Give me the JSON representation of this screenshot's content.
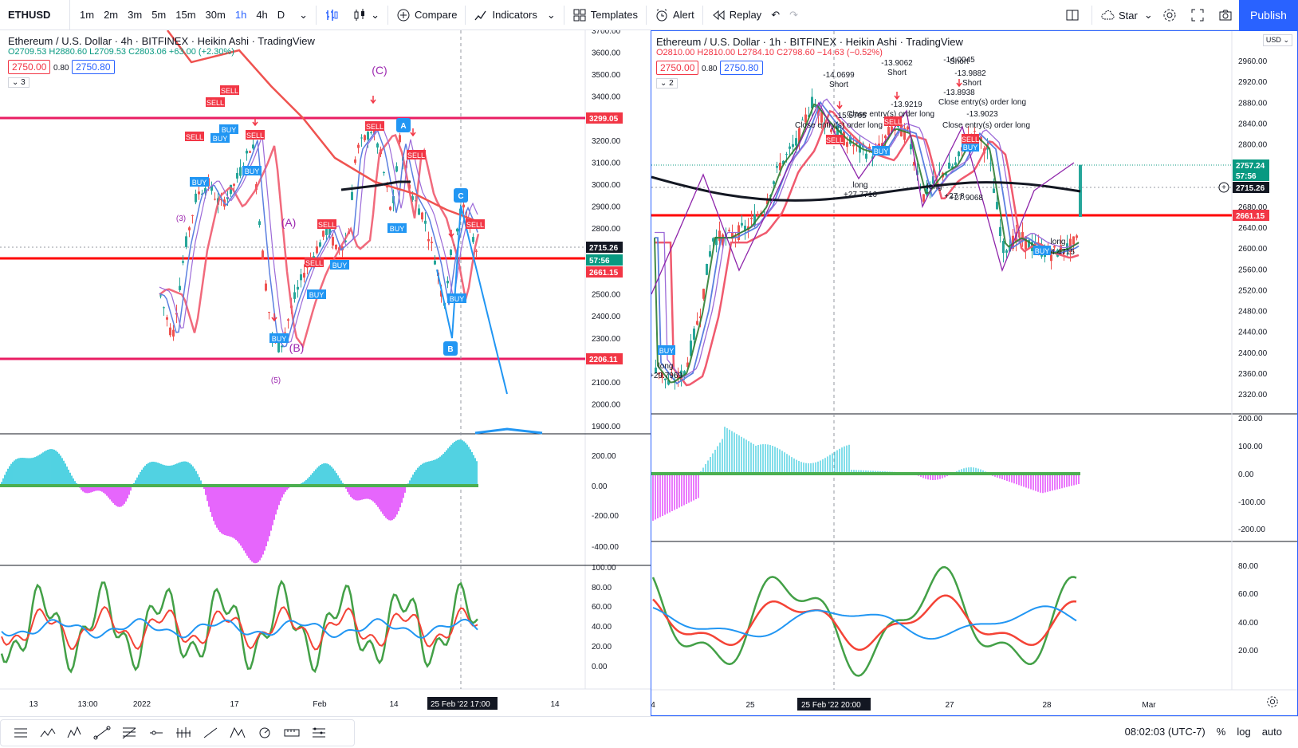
{
  "toolbar": {
    "symbol": "ETHUSD",
    "intervals": [
      "1m",
      "2m",
      "3m",
      "5m",
      "15m",
      "30m",
      "1h",
      "4h",
      "D"
    ],
    "active_interval": "1h",
    "compare": "Compare",
    "indicators": "Indicators",
    "templates": "Templates",
    "alert": "Alert",
    "replay": "Replay",
    "star": "Star",
    "publish": "Publish"
  },
  "left_chart": {
    "title": "Ethereum / U.S. Dollar · 4h · BITFINEX · Heikin Ashi · TradingView",
    "ohlc": {
      "o": "O2709.53",
      "h": "H2880.60",
      "l": "L2709.53",
      "c": "C2803.06",
      "chg": "+63.00 (+2.30%)"
    },
    "bid": "2750.00",
    "spread": "0.80",
    "ask": "2750.80",
    "indicator_count": "3",
    "price_axis": [
      "3700.00",
      "3600.00",
      "3500.00",
      "3400.00",
      "3300.00",
      "3200.00",
      "3100.00",
      "3000.00",
      "2900.00",
      "2800.00",
      "2500.00",
      "2400.00",
      "2300.00",
      "2100.00",
      "2000.00",
      "1900.00"
    ],
    "price_labels": [
      {
        "text": "3299.05",
        "color": "#f23645"
      },
      {
        "text": "2715.26",
        "color": "#131722"
      },
      {
        "text": "57:56",
        "color": "#089981"
      },
      {
        "text": "2661.15",
        "color": "#f23645"
      },
      {
        "text": "2206.11",
        "color": "#f23645"
      }
    ],
    "macd_axis": [
      "200.00",
      "0.00",
      "-200.00",
      "-400.00"
    ],
    "rsi_axis": [
      "100.00",
      "80.00",
      "60.00",
      "40.00",
      "20.00",
      "0.00"
    ],
    "time_axis": [
      "13",
      "13:00",
      "2022",
      "17",
      "Feb",
      "14",
      "14"
    ],
    "time_cursor": "25 Feb '22",
    "time_cursor2": "17:00",
    "waves": [
      "(C)",
      "(A)",
      "(B)",
      "(3)",
      "(5)"
    ],
    "points": [
      "A",
      "B",
      "C"
    ],
    "signal_buy": "BUY",
    "signal_sell": "SELL"
  },
  "right_chart": {
    "title": "Ethereum / U.S. Dollar · 1h · BITFINEX · Heikin Ashi · TradingView",
    "ohlc": {
      "o": "O2810.00",
      "h": "H2810.00",
      "l": "L2784.10",
      "c": "C2798.60",
      "chg": "−14.63 (−0.52%)"
    },
    "bid": "2750.00",
    "spread": "0.80",
    "ask": "2750.80",
    "indicator_count": "2",
    "currency": "USD",
    "price_axis": [
      "2960.00",
      "2920.00",
      "2880.00",
      "2840.00",
      "2800.00",
      "2760.00",
      "2680.00",
      "2640.00",
      "2600.00",
      "2560.00",
      "2520.00",
      "2480.00",
      "2440.00",
      "2400.00",
      "2360.00",
      "2320.00"
    ],
    "price_labels": [
      {
        "text": "2757.24",
        "color": "#089981"
      },
      {
        "text": "57:56",
        "color": "#089981"
      },
      {
        "text": "2715.26",
        "color": "#131722"
      },
      {
        "text": "2661.15",
        "color": "#f23645"
      }
    ],
    "macd_axis": [
      "200.00",
      "100.00",
      "0.00",
      "-100.00",
      "-200.00"
    ],
    "rsi_axis": [
      "80.00",
      "60.00",
      "40.00",
      "20.00"
    ],
    "time_axis": [
      "4",
      "25",
      "27",
      "28",
      "Mar"
    ],
    "time_cursor": "25 Feb '22",
    "time_cursor2": "20:00",
    "annotations": [
      {
        "text": "-14.0699"
      },
      {
        "text": "Short"
      },
      {
        "text": "-13.9062"
      },
      {
        "text": "Short"
      },
      {
        "text": "-14.0045"
      },
      {
        "text": "Short"
      },
      {
        "text": "-13.9882"
      },
      {
        "text": "Short"
      },
      {
        "text": "-13.8938"
      },
      {
        "text": "-13.9219"
      },
      {
        "text": "Close entry(s) order long"
      },
      {
        "text": "-15.5765"
      },
      {
        "text": "Close entry(s) order long"
      },
      {
        "text": "-13.9023"
      },
      {
        "text": "Close entry(s) order long"
      },
      {
        "text": "Close entry(s) order long"
      },
      {
        "text": "long"
      },
      {
        "text": "+27.7716"
      },
      {
        "text": "long"
      },
      {
        "text": "+27.8"
      },
      {
        "text": "+27.9068"
      },
      {
        "text": "long"
      },
      {
        "text": "+24.4715"
      },
      {
        "text": "long"
      },
      {
        "text": "+29.7969"
      }
    ],
    "signal_buy": "BUY",
    "signal_sell": "SELL"
  },
  "status": {
    "time": "08:02:03 (UTC-7)",
    "percent": "%",
    "log": "log",
    "auto": "auto"
  },
  "colors": {
    "accent": "#2962ff",
    "up": "#089981",
    "down": "#f23645",
    "hline_pink": "#e91e63",
    "hline_red": "#ff0000"
  }
}
